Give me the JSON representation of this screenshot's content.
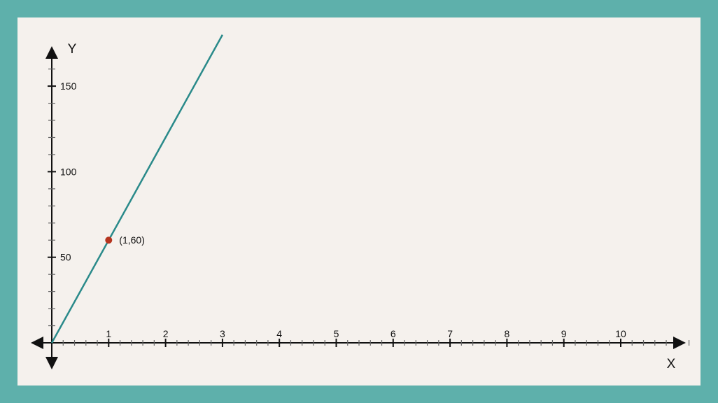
{
  "colors": {
    "border": "#5eb0ab",
    "panel": "#f5f1ed",
    "axis": "#111111",
    "minor_tick": "#666666",
    "line": "#2a8a8a",
    "point": "#b5341e"
  },
  "chart_data": {
    "type": "line",
    "x_axis": {
      "label": "X",
      "ticks": [
        1,
        2,
        3,
        4,
        5,
        6,
        7,
        8,
        9,
        10
      ],
      "minor_step": 0.2,
      "range": [
        0,
        11.2
      ],
      "arrows": "both"
    },
    "y_axis": {
      "label": "Y",
      "ticks": [
        50,
        100,
        150
      ],
      "minor_step": 10,
      "range": [
        0,
        163
      ],
      "arrows": "both"
    },
    "series": [
      {
        "points": [
          [
            0,
            0
          ],
          [
            3,
            180
          ]
        ]
      }
    ],
    "highlighted_points": [
      {
        "x": 1,
        "y": 60,
        "label": "(1,60)"
      }
    ],
    "grid": false
  }
}
